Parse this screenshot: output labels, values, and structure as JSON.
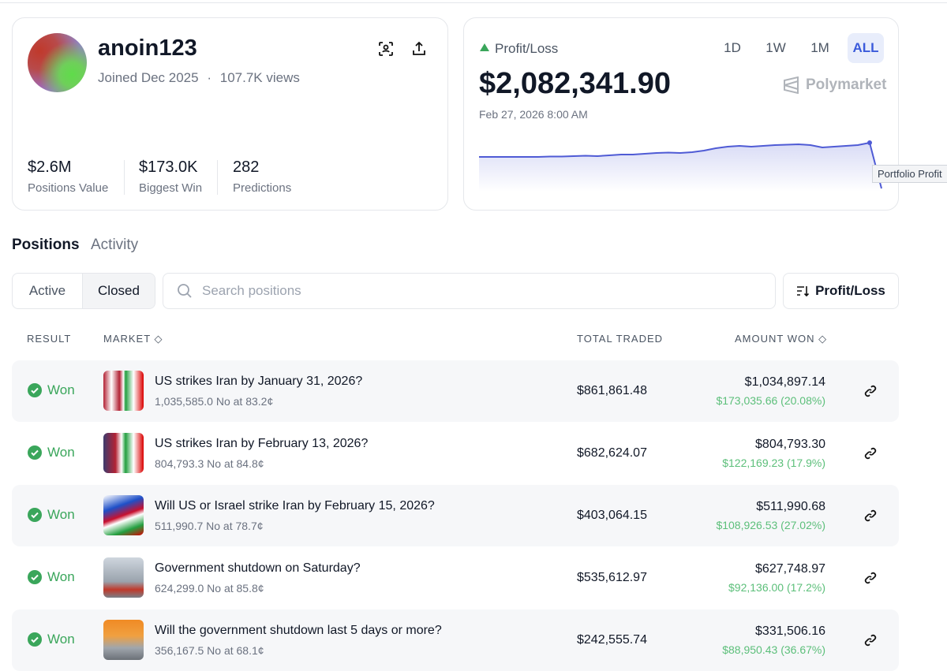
{
  "profile": {
    "username": "anoin123",
    "joined": "Joined Dec 2025",
    "separator": "·",
    "views": "107.7K views",
    "stats": [
      {
        "value": "$2.6M",
        "label": "Positions Value"
      },
      {
        "value": "$173.0K",
        "label": "Biggest Win"
      },
      {
        "value": "282",
        "label": "Predictions"
      }
    ]
  },
  "pnl": {
    "label": "Profit/Loss",
    "amount": "$2,082,341.90",
    "date": "Feb 27, 2026 8:00 AM",
    "ranges": [
      "1D",
      "1W",
      "1M",
      "ALL"
    ],
    "selected_range": 3,
    "brand": "Polymarket",
    "tooltip": "Portfolio Profit",
    "series": [
      0,
      0,
      0,
      0,
      0,
      0,
      0.5,
      0.5,
      1,
      1.5,
      1,
      2,
      3,
      3,
      4,
      5,
      5.5,
      5,
      6,
      8,
      11,
      13,
      14,
      13,
      14,
      15,
      15.5,
      16,
      15,
      12,
      13,
      14,
      15,
      18,
      -35
    ]
  },
  "tabs": [
    "Positions",
    "Activity"
  ],
  "filters": [
    "Active",
    "Closed"
  ],
  "selected_filter": 1,
  "search_placeholder": "Search positions",
  "sort_button": "Profit/Loss",
  "table": {
    "headers": [
      "RESULT",
      "MARKET",
      "TOTAL TRADED",
      "AMOUNT WON"
    ],
    "rows": [
      {
        "result": "Won",
        "title": "US strikes Iran by January 31, 2026?",
        "detail": "1,035,585.0 No at 83.2¢",
        "traded": "$861,861.48",
        "won": "$1,034,897.14",
        "profit": "$173,035.66 (20.08%)"
      },
      {
        "result": "Won",
        "title": "US strikes Iran by February 13, 2026?",
        "detail": "804,793.3 No at 84.8¢",
        "traded": "$682,624.07",
        "won": "$804,793.30",
        "profit": "$122,169.23 (17.9%)"
      },
      {
        "result": "Won",
        "title": "Will US or Israel strike Iran by February 15, 2026?",
        "detail": "511,990.7 No at 78.7¢",
        "traded": "$403,064.15",
        "won": "$511,990.68",
        "profit": "$108,926.53 (27.02%)"
      },
      {
        "result": "Won",
        "title": "Government shutdown on Saturday?",
        "detail": "624,299.0 No at 85.8¢",
        "traded": "$535,612.97",
        "won": "$627,748.97",
        "profit": "$92,136.00 (17.2%)"
      },
      {
        "result": "Won",
        "title": "Will the government shutdown last 5 days or more?",
        "detail": "356,167.5 No at 68.1¢",
        "traded": "$242,555.74",
        "won": "$331,506.16",
        "profit": "$88,950.43 (36.67%)"
      }
    ]
  }
}
